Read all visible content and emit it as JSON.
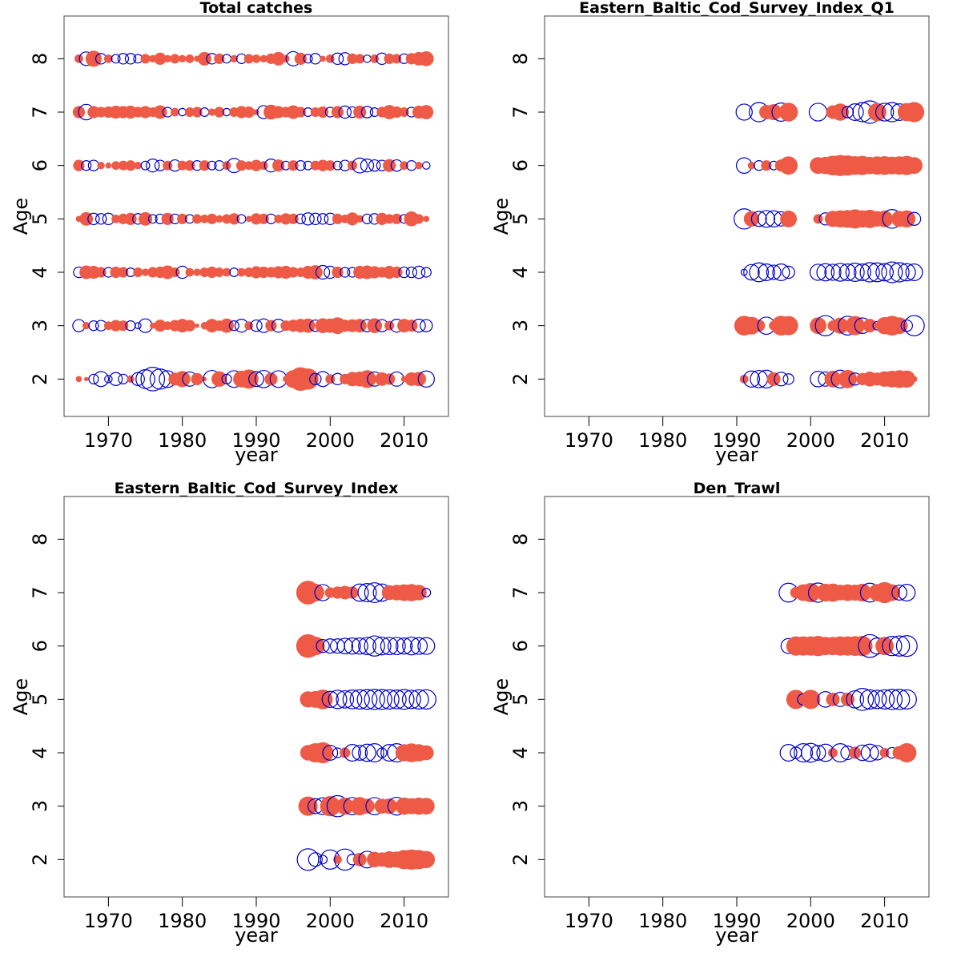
{
  "figure": {
    "colors": {
      "positive": "#ee5a45",
      "negative": "#0000cc",
      "frame": "#444444"
    }
  },
  "chart_data": [
    {
      "type": "scatter",
      "title": "Total catches",
      "xlabel": "year",
      "ylabel": "Age",
      "xlim": [
        1964,
        2016
      ],
      "ylim": [
        1.3,
        8.8
      ],
      "x_ticks": [
        1970,
        1980,
        1990,
        2000,
        2010
      ],
      "y_ticks": [
        2,
        3,
        4,
        5,
        6,
        7,
        8
      ],
      "ages": [
        2,
        3,
        4,
        5,
        6,
        7,
        8
      ],
      "years": [
        1966,
        2013
      ],
      "residuals": {
        "2": [
          0.2,
          0.1,
          -0.5,
          -1.2,
          -0.3,
          -0.9,
          -0.5,
          0.3,
          -0.9,
          -1.9,
          -3.0,
          -2.2,
          -1.5,
          0.9,
          1.4,
          -1.1,
          0.8,
          0.1,
          -1.6,
          1.3,
          -0.5,
          -1.5,
          1.5,
          2.0,
          -1.2,
          -1.6,
          0.9,
          -1.5,
          0.2,
          1.7,
          3.0,
          2.4,
          -0.7,
          -1.2,
          0.5,
          -0.7,
          0.6,
          1.1,
          1.2,
          1.7,
          -1.1,
          1.0,
          0.7,
          -1.1,
          0.2,
          1.0,
          1.1,
          -1.4
        ],
        "3": [
          -0.8,
          0.3,
          -0.5,
          -0.6,
          0.4,
          0.7,
          0.6,
          -0.5,
          -0.2,
          -1.0,
          0.2,
          0.8,
          0.4,
          0.7,
          1.0,
          0.7,
          0.1,
          0.3,
          1.0,
          0.6,
          1.1,
          -0.5,
          -0.9,
          0.4,
          -0.7,
          -1.0,
          0.7,
          -0.9,
          0.6,
          0.8,
          1.0,
          1.1,
          -0.7,
          1.2,
          1.1,
          1.5,
          0.8,
          0.9,
          1.0,
          -0.8,
          1.2,
          -0.8,
          0.5,
          -0.9,
          1.0,
          0.8,
          -0.9,
          -0.8
        ],
        "4": [
          -0.6,
          1.0,
          0.9,
          0.6,
          -0.5,
          0.7,
          0.6,
          -0.4,
          0.5,
          0.3,
          0.6,
          0.7,
          1.0,
          0.5,
          -0.8,
          0.4,
          0.3,
          0.5,
          0.7,
          0.5,
          0.4,
          -0.4,
          0.4,
          0.5,
          0.8,
          0.7,
          0.6,
          0.8,
          0.9,
          0.6,
          0.5,
          0.9,
          1.1,
          -1.0,
          -0.8,
          0.7,
          -0.5,
          -0.5,
          0.9,
          1.0,
          0.8,
          0.6,
          0.9,
          0.7,
          -0.6,
          -0.6,
          -0.8,
          -0.5
        ],
        "5": [
          0.2,
          1.0,
          -0.7,
          -0.6,
          -0.7,
          0.4,
          0.6,
          0.8,
          -0.6,
          1.0,
          -0.4,
          -0.5,
          0.8,
          -0.5,
          0.6,
          -0.4,
          0.5,
          0.4,
          0.6,
          0.3,
          0.5,
          0.7,
          -0.4,
          0.2,
          0.7,
          0.6,
          -0.5,
          0.4,
          0.7,
          0.6,
          -0.5,
          -0.8,
          -0.7,
          -0.6,
          -0.7,
          0.6,
          0.4,
          0.9,
          0.3,
          -0.5,
          -0.6,
          0.8,
          0.5,
          0.6,
          -0.4,
          1.2,
          0.5,
          0.2
        ],
        "6": [
          0.7,
          -0.5,
          -0.6,
          0.3,
          0.2,
          0.4,
          0.5,
          0.6,
          0.3,
          -0.4,
          -0.9,
          -0.6,
          0.5,
          -0.7,
          0.5,
          0.6,
          -0.5,
          0.6,
          -0.4,
          -0.5,
          0.4,
          -1.1,
          0.6,
          0.4,
          0.7,
          0.4,
          -0.9,
          0.8,
          -0.4,
          0.6,
          -0.5,
          -0.4,
          0.5,
          0.7,
          0.6,
          -0.4,
          -0.6,
          0.5,
          -1.2,
          -0.9,
          -0.7,
          -0.6,
          0.9,
          -0.7,
          0.4,
          -0.5,
          0.3,
          -0.3
        ],
        "7": [
          0.8,
          -1.3,
          0.8,
          0.6,
          0.7,
          0.9,
          0.8,
          0.9,
          0.6,
          0.8,
          0.5,
          1.0,
          -0.5,
          0.4,
          -0.3,
          0.5,
          0.6,
          -0.4,
          0.3,
          0.6,
          -0.3,
          0.5,
          0.8,
          0.7,
          0.2,
          -0.9,
          1.2,
          0.8,
          0.6,
          1.0,
          0.6,
          -0.4,
          0.5,
          0.7,
          -0.5,
          0.8,
          -0.8,
          -0.6,
          0.9,
          -0.7,
          -0.4,
          0.6,
          1.1,
          0.7,
          0.5,
          -0.5,
          0.9,
          1.1
        ],
        "8": [
          0.4,
          -1.0,
          1.4,
          -0.6,
          0.4,
          -0.4,
          -0.6,
          -0.6,
          -0.4,
          0.5,
          0.3,
          0.8,
          0.3,
          0.5,
          0.3,
          0.4,
          0.2,
          1.0,
          -0.6,
          0.6,
          -0.4,
          0.3,
          -0.5,
          0.5,
          0.4,
          0.3,
          0.6,
          1.0,
          0.3,
          -1.1,
          0.8,
          -0.4,
          -0.6,
          0.2,
          0.4,
          -0.7,
          -0.8,
          0.6,
          0.5,
          -0.3,
          0.4,
          -0.7,
          0.6,
          0.5,
          -0.5,
          0.7,
          1.0,
          1.2
        ]
      }
    },
    {
      "type": "scatter",
      "title": "Eastern_Baltic_Cod_Survey_Index_Q1",
      "xlabel": "year",
      "ylabel": "Age",
      "xlim": [
        1964,
        2016
      ],
      "ylim": [
        1.3,
        8.8
      ],
      "x_ticks": [
        1970,
        1980,
        1990,
        2000,
        2010
      ],
      "y_ticks": [
        2,
        3,
        4,
        5,
        6,
        7,
        8
      ],
      "ages": [
        2,
        3,
        4,
        5,
        6,
        7,
        8
      ],
      "years": [
        1991,
        2014
      ],
      "residuals": {
        "2": [
          0.4,
          -1.4,
          -1.6,
          -1.7,
          1.0,
          -1.0,
          -0.6,
          null,
          null,
          null,
          -1.3,
          -1.1,
          1.5,
          -1.7,
          1.8,
          -0.8,
          0.8,
          1.2,
          0.9,
          1.3,
          1.5,
          1.7,
          1.6,
          0.2
        ],
        "3": [
          2.1,
          1.7,
          0.8,
          -1.6,
          0.5,
          2.1,
          2.0,
          null,
          null,
          null,
          1.5,
          -2.2,
          0.6,
          1.4,
          -1.9,
          2.0,
          -1.3,
          1.0,
          -0.4,
          1.6,
          2.1,
          1.5,
          -0.7,
          -2.2
        ],
        "4": [
          -0.2,
          -1.3,
          -1.9,
          -1.5,
          -1.1,
          -1.5,
          -0.8,
          null,
          null,
          null,
          -1.4,
          -1.6,
          -1.4,
          -1.7,
          -1.5,
          -1.8,
          -1.5,
          -2.0,
          -1.9,
          -1.6,
          -2.3,
          -2.0,
          -1.6,
          -1.5
        ],
        "5": [
          -2.2,
          1.3,
          -1.2,
          -1.5,
          -1.4,
          -1.1,
          1.5,
          null,
          null,
          null,
          0.5,
          -0.8,
          1.4,
          1.6,
          1.7,
          2.0,
          1.6,
          1.8,
          1.3,
          1.5,
          -1.9,
          1.4,
          1.6,
          -0.9
        ],
        "6": [
          -1.3,
          0.3,
          -0.5,
          0.6,
          -0.4,
          0.8,
          1.8,
          null,
          null,
          null,
          1.5,
          1.6,
          2.1,
          2.4,
          2.2,
          1.9,
          2.0,
          1.6,
          1.8,
          1.9,
          1.7,
          1.8,
          2.0,
          1.5
        ],
        "7": [
          -1.4,
          null,
          -2.0,
          1.1,
          1.4,
          -1.8,
          1.9,
          null,
          null,
          null,
          -1.7,
          null,
          1.0,
          1.6,
          -0.7,
          -1.5,
          -2.0,
          -2.7,
          1.8,
          -1.7,
          -2.0,
          -1.5,
          1.8,
          2.2
        ]
      }
    },
    {
      "type": "scatter",
      "title": "Eastern_Baltic_Cod_Survey_Index",
      "xlabel": "year",
      "ylabel": "Age",
      "xlim": [
        1964,
        2016
      ],
      "ylim": [
        1.3,
        8.8
      ],
      "x_ticks": [
        1970,
        1980,
        1990,
        2000,
        2010
      ],
      "y_ticks": [
        2,
        3,
        4,
        5,
        6,
        7,
        8
      ],
      "ages": [
        2,
        3,
        4,
        5,
        6,
        7,
        8
      ],
      "years": [
        1997,
        2013
      ],
      "residuals": {
        "2": [
          -2.5,
          -1.0,
          -0.4,
          -2.0,
          0.4,
          -2.4,
          -0.6,
          1.0,
          -1.5,
          1.3,
          1.1,
          1.5,
          1.4,
          2.0,
          2.2,
          2.0,
          1.6
        ],
        "3": [
          2.0,
          -1.2,
          -1.5,
          2.2,
          -2.4,
          1.6,
          -1.6,
          1.8,
          1.2,
          -1.6,
          1.2,
          1.3,
          -1.7,
          1.6,
          1.4,
          1.6,
          1.5
        ],
        "4": [
          1.3,
          2.0,
          2.4,
          -1.2,
          -0.5,
          0.6,
          -1.5,
          -1.2,
          -1.6,
          -1.8,
          -0.5,
          -1.5,
          -1.8,
          1.6,
          1.9,
          1.6,
          1.2
        ],
        "5": [
          1.4,
          1.5,
          2.1,
          -1.4,
          -1.8,
          -1.6,
          -1.9,
          -2.0,
          -2.1,
          -2.2,
          -2.1,
          -2.0,
          -1.9,
          -2.1,
          -1.8,
          -2.0,
          -2.0
        ],
        "6": [
          3.0,
          1.9,
          -0.9,
          -1.1,
          -1.1,
          -1.3,
          -1.4,
          -1.4,
          -1.6,
          -2.2,
          -1.7,
          -1.6,
          -1.6,
          -1.4,
          -1.7,
          -1.5,
          -1.5
        ],
        "7": [
          3.0,
          1.7,
          -1.4,
          0.6,
          0.8,
          1.0,
          0.8,
          -1.6,
          -1.8,
          -2.1,
          -1.6,
          1.2,
          1.3,
          1.5,
          1.6,
          1.3,
          -0.4
        ]
      }
    },
    {
      "type": "scatter",
      "title": "Den_Trawl",
      "xlabel": "year",
      "ylabel": "Age",
      "xlim": [
        1964,
        2016
      ],
      "ylim": [
        1.3,
        8.8
      ],
      "x_ticks": [
        1970,
        1980,
        1990,
        2000,
        2010
      ],
      "y_ticks": [
        2,
        3,
        4,
        5,
        6,
        7,
        8
      ],
      "ages": [
        2,
        3,
        4,
        5,
        6,
        7,
        8
      ],
      "years": [
        1997,
        2013
      ],
      "residuals": {
        "2": [],
        "3": [],
        "4": [
          -1.5,
          -0.7,
          -1.8,
          -1.9,
          -1.2,
          -1.6,
          0.5,
          -1.8,
          -1.0,
          0.8,
          -1.3,
          -1.6,
          -1.1,
          0.5,
          -0.6,
          1.0,
          2.0
        ],
        "5": [
          null,
          2.0,
          -0.7,
          2.0,
          null,
          -1.3,
          1.0,
          -1.1,
          1.0,
          -1.6,
          -2.6,
          -2.0,
          -1.8,
          -2.0,
          -2.2,
          -2.2,
          -2.0
        ],
        "6": [
          -1.2,
          2.0,
          2.0,
          2.0,
          2.2,
          1.8,
          1.8,
          2.0,
          2.0,
          2.1,
          2.2,
          -2.8,
          -1.4,
          1.8,
          -2.0,
          -2.2,
          -2.3
        ],
        "7": [
          -1.9,
          0.7,
          1.5,
          2.0,
          -2.0,
          1.7,
          1.8,
          1.3,
          1.5,
          1.4,
          1.7,
          -1.9,
          1.6,
          2.4,
          1.5,
          -1.2,
          -1.5
        ]
      }
    }
  ]
}
